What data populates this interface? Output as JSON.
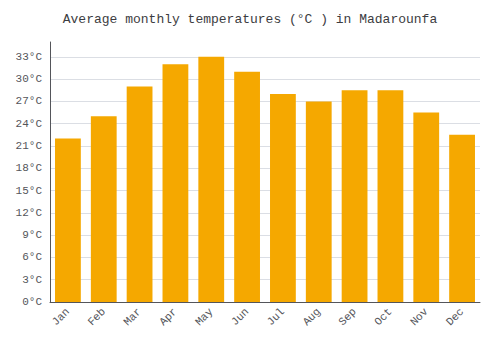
{
  "chart_data": {
    "type": "bar",
    "title": "Average monthly temperatures (°C ) in Madarounfa",
    "categories": [
      "Jan",
      "Feb",
      "Mar",
      "Apr",
      "May",
      "Jun",
      "Jul",
      "Aug",
      "Sep",
      "Oct",
      "Nov",
      "Dec"
    ],
    "values": [
      22.0,
      25.0,
      29.0,
      32.0,
      33.0,
      31.0,
      28.0,
      27.0,
      28.5,
      28.5,
      25.5,
      22.5
    ],
    "color": "#F5A800",
    "ylim": [
      0,
      35
    ],
    "yticks": [
      {
        "value": 0,
        "label": "0°C"
      },
      {
        "value": 3,
        "label": "3°C"
      },
      {
        "value": 6,
        "label": "6°C"
      },
      {
        "value": 9,
        "label": "9°C"
      },
      {
        "value": 12,
        "label": "12°C"
      },
      {
        "value": 15,
        "label": "15°C"
      },
      {
        "value": 18,
        "label": "18°C"
      },
      {
        "value": 21,
        "label": "21°C"
      },
      {
        "value": 24,
        "label": "24°C"
      },
      {
        "value": 27,
        "label": "27°C"
      },
      {
        "value": 30,
        "label": "30°C"
      },
      {
        "value": 33,
        "label": "33°C"
      }
    ],
    "grid": true
  }
}
